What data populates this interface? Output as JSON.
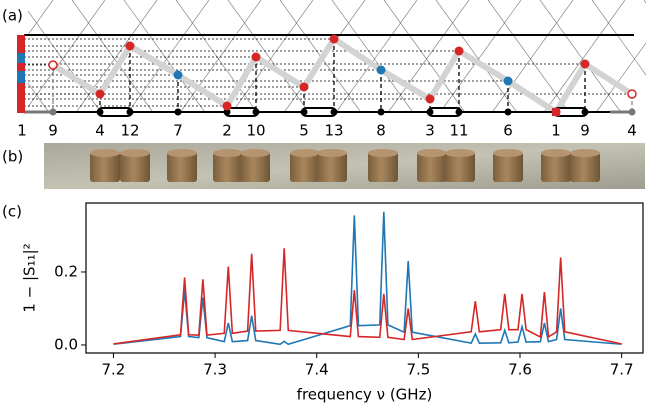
{
  "panel_labels": [
    "(a)",
    "(b)",
    "(c)"
  ],
  "diagram": {
    "site_labels": [
      "1",
      "9",
      "4",
      "12",
      "7",
      "2",
      "10",
      "5",
      "13",
      "8",
      "3",
      "11",
      "6",
      "1",
      "9",
      "4"
    ]
  },
  "chart_data": {
    "type": "line",
    "xlabel": "frequency ν (GHz)",
    "ylabel": "1 − |S₁₁|²",
    "x": [
      7.2,
      7.266,
      7.27,
      7.274,
      7.284,
      7.288,
      7.292,
      7.309,
      7.313,
      7.317,
      7.332,
      7.336,
      7.34,
      7.364,
      7.368,
      7.372,
      7.433,
      7.437,
      7.441,
      7.462,
      7.466,
      7.47,
      7.486,
      7.49,
      7.494,
      7.552,
      7.556,
      7.56,
      7.581,
      7.585,
      7.589,
      7.598,
      7.602,
      7.606,
      7.62,
      7.624,
      7.628,
      7.636,
      7.64,
      7.644,
      7.7
    ],
    "series": [
      {
        "color": "#1f77b4",
        "values": [
          0.002,
          0.023,
          0.15,
          0.023,
          0.02,
          0.13,
          0.02,
          0.009,
          0.06,
          0.009,
          0.012,
          0.08,
          0.012,
          0.002,
          0.01,
          0.002,
          0.053,
          0.355,
          0.053,
          0.055,
          0.365,
          0.055,
          0.035,
          0.23,
          0.035,
          0.005,
          0.03,
          0.005,
          0.006,
          0.04,
          0.006,
          0.008,
          0.05,
          0.008,
          0.009,
          0.06,
          0.009,
          0.015,
          0.1,
          0.015,
          0.002
        ]
      },
      {
        "color": "#d62728",
        "values": [
          0.003,
          0.028,
          0.185,
          0.028,
          0.027,
          0.18,
          0.027,
          0.032,
          0.215,
          0.032,
          0.038,
          0.25,
          0.038,
          0.04,
          0.265,
          0.04,
          0.023,
          0.15,
          0.023,
          0.021,
          0.14,
          0.021,
          0.015,
          0.1,
          0.015,
          0.036,
          0.12,
          0.036,
          0.042,
          0.14,
          0.042,
          0.042,
          0.14,
          0.042,
          0.022,
          0.145,
          0.022,
          0.036,
          0.24,
          0.036,
          0.003
        ]
      }
    ],
    "xlim": [
      7.173,
      7.721
    ],
    "ylim": [
      -0.022,
      0.389
    ],
    "xticks": [
      7.2,
      7.3,
      7.4,
      7.5,
      7.6,
      7.7
    ],
    "yticks": [
      {
        "value": 0,
        "label": "0.0"
      },
      {
        "value": 0.2,
        "label": "0.2"
      }
    ]
  }
}
